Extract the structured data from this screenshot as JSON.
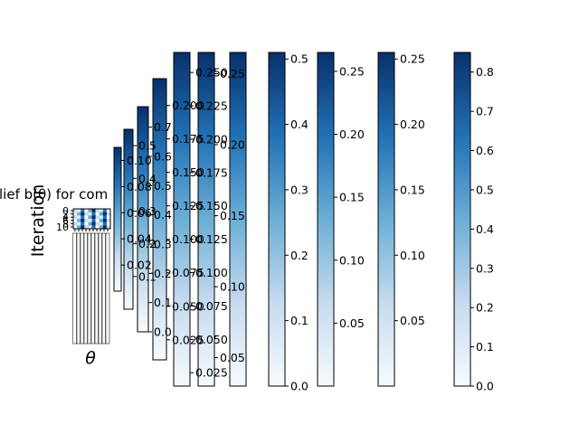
{
  "colors": {
    "cmap_low": "#f7fbff",
    "cmap_mid": "#6baed6",
    "cmap_high": "#08306b",
    "axes": "#000000",
    "background": "#ffffff"
  },
  "chart_data": {
    "type": "heatmap",
    "title": "Belief b(θ) for com",
    "title_visible_fragment": "lief b(θ) for com",
    "xlabel": "θ",
    "ylabel": "Iteration",
    "y_tick_labels": [
      "0",
      "2",
      "4",
      "6",
      "8",
      "10"
    ],
    "colormap": "Blues",
    "grid": false,
    "colorbars": [
      {
        "range": [
          0,
          0.11
        ],
        "ticks": [
          "0.02",
          "0.04",
          "0.06",
          "0.08",
          "0.10"
        ]
      },
      {
        "range": [
          0,
          0.55
        ],
        "ticks": [
          "0.1",
          "0.2",
          "0.3",
          "0.4",
          "0.5"
        ]
      },
      {
        "range": [
          0,
          0.77
        ],
        "ticks": [
          "0.0",
          "0.1",
          "0.2",
          "0.3",
          "0.4",
          "0.5",
          "0.6",
          "0.7"
        ]
      },
      {
        "range": [
          0.01,
          0.22
        ],
        "ticks": [
          "0.025",
          "0.050",
          "0.075",
          "0.100",
          "0.125",
          "0.150",
          "0.175",
          "0.200"
        ]
      },
      {
        "range": [
          0.015,
          0.265
        ],
        "ticks": [
          "0.025",
          "0.050",
          "0.075",
          "0.100",
          "0.125",
          "0.150",
          "0.175",
          "0.200",
          "0.225",
          "0.250"
        ]
      },
      {
        "range": [
          0.03,
          0.265
        ],
        "ticks": [
          "0.05",
          "0.10",
          "0.15",
          "0.20",
          "0.25"
        ]
      },
      {
        "range": [
          0.0,
          0.51
        ],
        "ticks": [
          "0.0",
          "0.1",
          "0.2",
          "0.3",
          "0.4",
          "0.5"
        ]
      },
      {
        "range": [
          0.0,
          0.265
        ],
        "ticks": [
          "0.05",
          "0.10",
          "0.15",
          "0.20",
          "0.25"
        ]
      },
      {
        "range": [
          0.0,
          0.255
        ],
        "ticks": [
          "0.05",
          "0.10",
          "0.15",
          "0.20",
          "0.25"
        ]
      },
      {
        "range": [
          0.0,
          0.85
        ],
        "ticks": [
          "0.0",
          "0.1",
          "0.2",
          "0.3",
          "0.4",
          "0.5",
          "0.6",
          "0.7",
          "0.8"
        ]
      }
    ]
  }
}
